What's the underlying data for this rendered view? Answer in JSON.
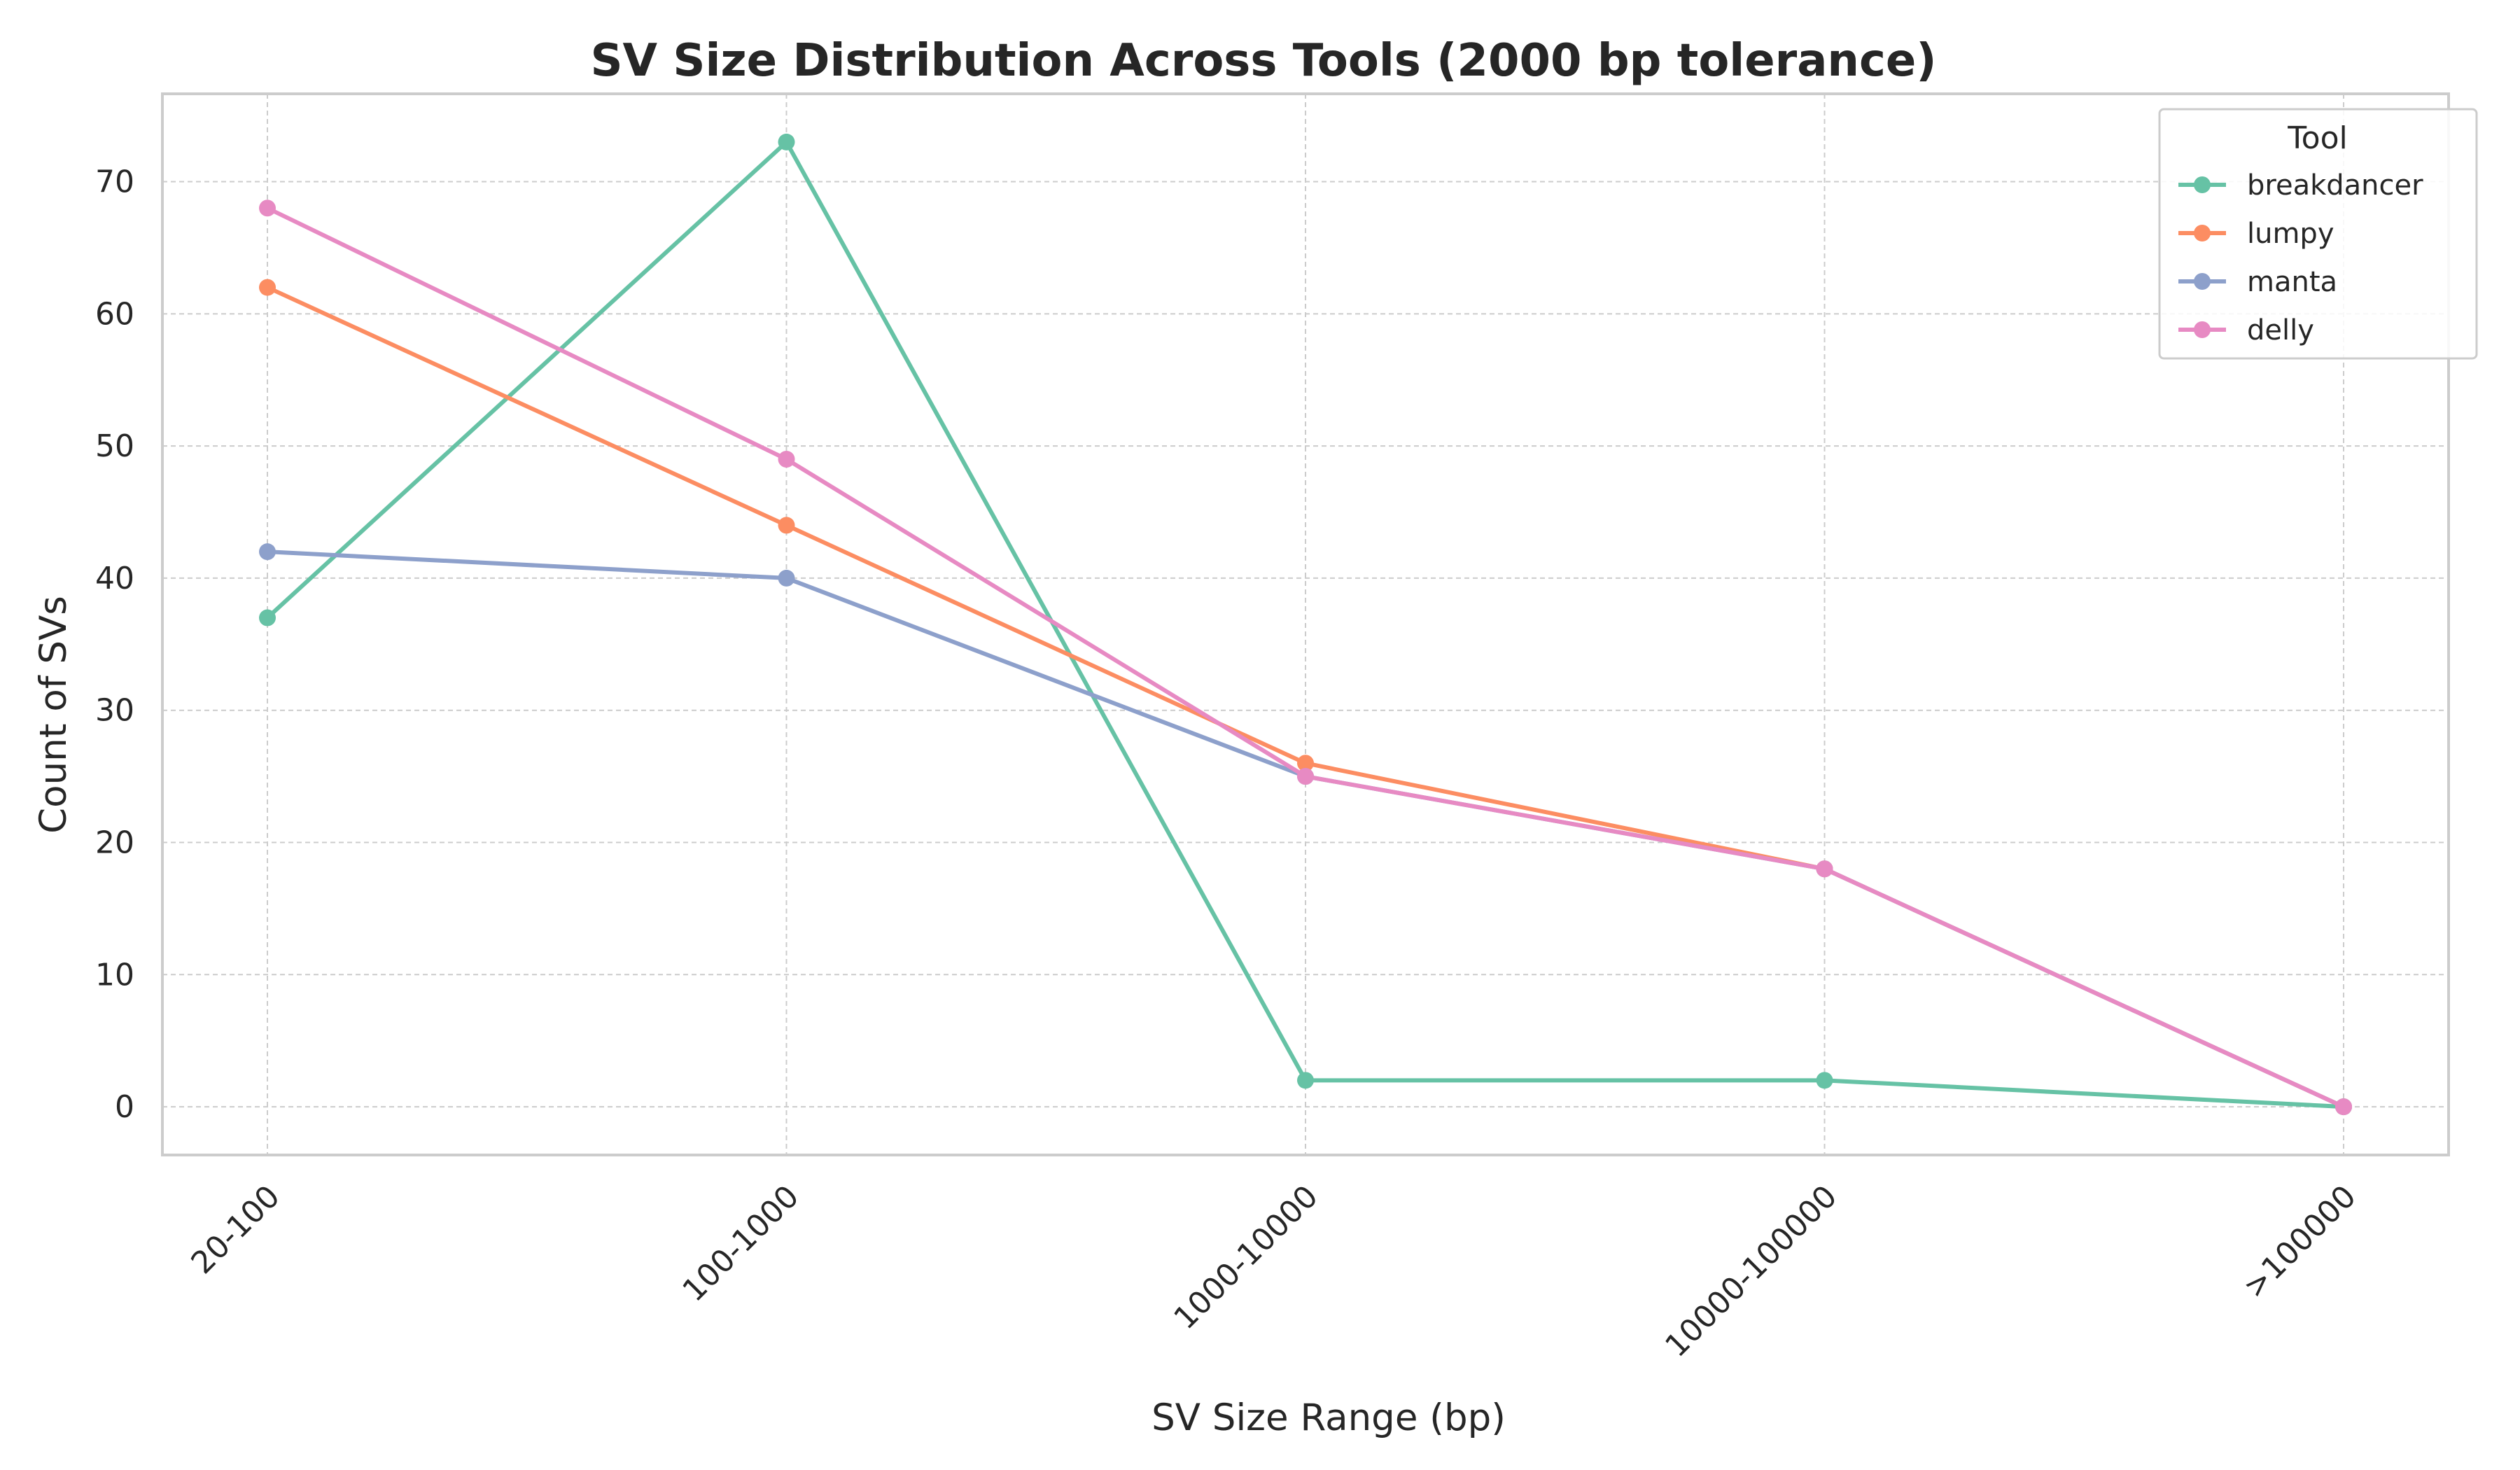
{
  "chart_data": {
    "type": "line",
    "title": "SV Size Distribution Across Tools (2000 bp tolerance)",
    "xlabel": "SV Size Range (bp)",
    "ylabel": "Count of SVs",
    "categories": [
      "20-100",
      "100-1000",
      "1000-10000",
      "10000-100000",
      ">100000"
    ],
    "ylim": [
      -3.65,
      76.65
    ],
    "yticks": [
      0,
      10,
      20,
      30,
      40,
      50,
      60,
      70
    ],
    "grid": true,
    "legend": {
      "title": "Tool",
      "placement": "top-right"
    },
    "series": [
      {
        "name": "breakdancer",
        "color": "#66c2a5",
        "values": [
          37,
          73,
          2,
          2,
          0
        ]
      },
      {
        "name": "lumpy",
        "color": "#fc8d62",
        "values": [
          62,
          44,
          26,
          18,
          0
        ]
      },
      {
        "name": "manta",
        "color": "#8da0cb",
        "values": [
          42,
          40,
          25,
          18,
          0
        ]
      },
      {
        "name": "delly",
        "color": "#e78ac3",
        "values": [
          68,
          49,
          25,
          18,
          0
        ]
      }
    ]
  }
}
